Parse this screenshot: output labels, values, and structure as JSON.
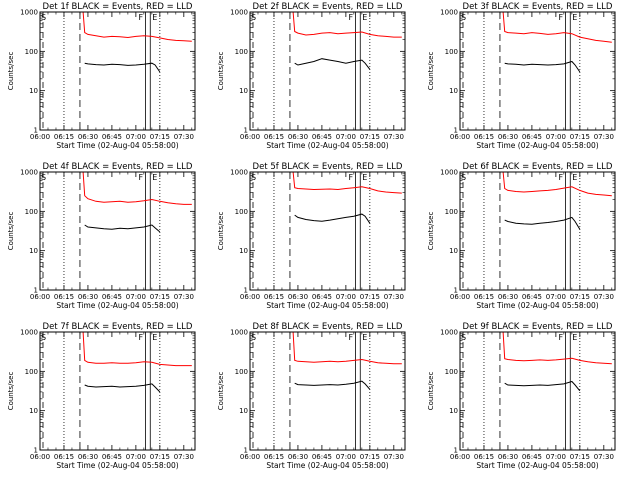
{
  "chart_data": {
    "type": "line",
    "panels": [
      {
        "title": "Det 1f BLACK = Events, RED = LLD",
        "xlabel": "Start Time (02-Aug-04 05:58:00)",
        "ylabel": "Counts/sec",
        "x_ticks": [
          "06:00",
          "06:15",
          "06:30",
          "06:45",
          "07:00",
          "07:15",
          "07:30"
        ],
        "y_ticks": [
          "1",
          "10",
          "100",
          "1000"
        ],
        "xlim": [
          "06:00",
          "07:37"
        ],
        "ylim": [
          1,
          1000
        ],
        "yscale": "log",
        "flags": [
          "S",
          "F",
          "E"
        ],
        "series": [
          {
            "color": "#ff0000",
            "x": [
              "06:27",
              "06:28",
              "06:30",
              "06:35",
              "06:40",
              "06:45",
              "06:50",
              "06:55",
              "07:00",
              "07:05",
              "07:10",
              "07:15",
              "07:20",
              "07:25",
              "07:30",
              "07:35"
            ],
            "values": [
              1000,
              300,
              270,
              250,
              230,
              240,
              235,
              225,
              240,
              250,
              240,
              220,
              200,
              190,
              185,
              180
            ]
          },
          {
            "color": "#000000",
            "x": [
              "06:28",
              "06:30",
              "06:35",
              "06:40",
              "06:45",
              "06:50",
              "06:55",
              "07:00",
              "07:05",
              "07:10",
              "07:12",
              "07:15"
            ],
            "values": [
              50,
              48,
              46,
              45,
              47,
              46,
              44,
              45,
              47,
              50,
              45,
              30
            ]
          }
        ]
      },
      {
        "title": "Det 2f BLACK = Events, RED = LLD",
        "xlabel": "Start Time (02-Aug-04 05:58:00)",
        "ylabel": "Counts/sec",
        "x_ticks": [
          "06:00",
          "06:15",
          "06:30",
          "06:45",
          "07:00",
          "07:15",
          "07:30"
        ],
        "y_ticks": [
          "1",
          "10",
          "100",
          "1000"
        ],
        "xlim": [
          "06:00",
          "07:37"
        ],
        "ylim": [
          1,
          1000
        ],
        "yscale": "log",
        "flags": [
          "S",
          "F",
          "E"
        ],
        "series": [
          {
            "color": "#ff0000",
            "x": [
              "06:27",
              "06:28",
              "06:30",
              "06:35",
              "06:40",
              "06:45",
              "06:50",
              "06:55",
              "07:00",
              "07:05",
              "07:10",
              "07:15",
              "07:20",
              "07:25",
              "07:30",
              "07:35"
            ],
            "values": [
              1000,
              320,
              290,
              260,
              270,
              290,
              300,
              280,
              290,
              300,
              310,
              270,
              250,
              240,
              230,
              230
            ]
          },
          {
            "color": "#000000",
            "x": [
              "06:28",
              "06:30",
              "06:35",
              "06:40",
              "06:45",
              "06:50",
              "06:55",
              "07:00",
              "07:05",
              "07:10",
              "07:12",
              "07:15"
            ],
            "values": [
              50,
              45,
              50,
              55,
              65,
              60,
              55,
              50,
              55,
              60,
              50,
              35
            ]
          }
        ]
      },
      {
        "title": "Det 3f BLACK = Events, RED = LLD",
        "xlabel": "Start Time (02-Aug-04 05:58:00)",
        "ylabel": "Counts/sec",
        "x_ticks": [
          "06:00",
          "06:15",
          "06:30",
          "06:45",
          "07:00",
          "07:15",
          "07:30"
        ],
        "y_ticks": [
          "1",
          "10",
          "100",
          "1000"
        ],
        "xlim": [
          "06:00",
          "07:37"
        ],
        "ylim": [
          1,
          1000
        ],
        "yscale": "log",
        "flags": [
          "S",
          "F",
          "E"
        ],
        "series": [
          {
            "color": "#ff0000",
            "x": [
              "06:27",
              "06:28",
              "06:30",
              "06:35",
              "06:40",
              "06:45",
              "06:50",
              "06:55",
              "07:00",
              "07:05",
              "07:10",
              "07:15",
              "07:20",
              "07:25",
              "07:30",
              "07:35"
            ],
            "values": [
              1000,
              320,
              300,
              290,
              280,
              300,
              285,
              270,
              280,
              300,
              280,
              230,
              210,
              190,
              180,
              170
            ]
          },
          {
            "color": "#000000",
            "x": [
              "06:28",
              "06:30",
              "06:35",
              "06:40",
              "06:45",
              "06:50",
              "06:55",
              "07:00",
              "07:05",
              "07:10",
              "07:12",
              "07:15"
            ],
            "values": [
              50,
              48,
              47,
              45,
              47,
              46,
              45,
              46,
              48,
              55,
              45,
              30
            ]
          }
        ]
      },
      {
        "title": "Det 4f BLACK = Events, RED = LLD",
        "xlabel": "Start Time (02-Aug-04 05:58:00)",
        "ylabel": "Counts/sec",
        "x_ticks": [
          "06:00",
          "06:15",
          "06:30",
          "06:45",
          "07:00",
          "07:15",
          "07:30"
        ],
        "y_ticks": [
          "1",
          "10",
          "100",
          "1000"
        ],
        "xlim": [
          "06:00",
          "07:37"
        ],
        "ylim": [
          1,
          1000
        ],
        "yscale": "log",
        "flags": [
          "S",
          "F",
          "E"
        ],
        "series": [
          {
            "color": "#ff0000",
            "x": [
              "06:27",
              "06:28",
              "06:30",
              "06:35",
              "06:40",
              "06:45",
              "06:50",
              "06:55",
              "07:00",
              "07:05",
              "07:10",
              "07:15",
              "07:20",
              "07:25",
              "07:30",
              "07:35"
            ],
            "values": [
              1000,
              250,
              210,
              180,
              170,
              175,
              180,
              170,
              175,
              185,
              200,
              180,
              165,
              155,
              150,
              150
            ]
          },
          {
            "color": "#000000",
            "x": [
              "06:28",
              "06:30",
              "06:35",
              "06:40",
              "06:45",
              "06:50",
              "06:55",
              "07:00",
              "07:05",
              "07:10",
              "07:12",
              "07:15"
            ],
            "values": [
              45,
              40,
              38,
              36,
              35,
              37,
              36,
              38,
              40,
              45,
              38,
              30
            ]
          }
        ]
      },
      {
        "title": "Det 5f BLACK = Events, RED = LLD",
        "xlabel": "Start Time (02-Aug-04 05:58:00)",
        "ylabel": "Counts/sec",
        "x_ticks": [
          "06:00",
          "06:15",
          "06:30",
          "06:45",
          "07:00",
          "07:15",
          "07:30"
        ],
        "y_ticks": [
          "1",
          "10",
          "100",
          "1000"
        ],
        "xlim": [
          "06:00",
          "07:37"
        ],
        "ylim": [
          1,
          1000
        ],
        "yscale": "log",
        "flags": [
          "S",
          "F",
          "E"
        ],
        "series": [
          {
            "color": "#ff0000",
            "x": [
              "06:27",
              "06:28",
              "06:30",
              "06:35",
              "06:40",
              "06:45",
              "06:50",
              "06:55",
              "07:00",
              "07:05",
              "07:10",
              "07:15",
              "07:20",
              "07:25",
              "07:30",
              "07:35"
            ],
            "values": [
              1000,
              400,
              380,
              370,
              360,
              365,
              370,
              360,
              380,
              400,
              420,
              380,
              330,
              310,
              300,
              290
            ]
          },
          {
            "color": "#000000",
            "x": [
              "06:28",
              "06:30",
              "06:35",
              "06:40",
              "06:45",
              "06:50",
              "06:55",
              "07:00",
              "07:05",
              "07:10",
              "07:12",
              "07:15"
            ],
            "values": [
              80,
              70,
              62,
              58,
              56,
              60,
              65,
              70,
              75,
              85,
              75,
              50
            ]
          }
        ]
      },
      {
        "title": "Det 6f BLACK = Events, RED = LLD",
        "xlabel": "Start Time (02-Aug-04 05:58:00)",
        "ylabel": "Counts/sec",
        "x_ticks": [
          "06:00",
          "06:15",
          "06:30",
          "06:45",
          "07:00",
          "07:15",
          "07:30"
        ],
        "y_ticks": [
          "1",
          "10",
          "100",
          "1000"
        ],
        "xlim": [
          "06:00",
          "07:37"
        ],
        "ylim": [
          1,
          1000
        ],
        "yscale": "log",
        "flags": [
          "S",
          "F",
          "E"
        ],
        "series": [
          {
            "color": "#ff0000",
            "x": [
              "06:27",
              "06:28",
              "06:30",
              "06:35",
              "06:40",
              "06:45",
              "06:50",
              "06:55",
              "07:00",
              "07:05",
              "07:10",
              "07:15",
              "07:20",
              "07:25",
              "07:30",
              "07:35"
            ],
            "values": [
              1000,
              380,
              340,
              320,
              310,
              320,
              330,
              340,
              360,
              390,
              420,
              340,
              290,
              270,
              260,
              250
            ]
          },
          {
            "color": "#000000",
            "x": [
              "06:28",
              "06:30",
              "06:35",
              "06:40",
              "06:45",
              "06:50",
              "06:55",
              "07:00",
              "07:05",
              "07:10",
              "07:12",
              "07:15"
            ],
            "values": [
              60,
              55,
              50,
              48,
              47,
              50,
              52,
              55,
              60,
              70,
              55,
              35
            ]
          }
        ]
      },
      {
        "title": "Det 7f BLACK = Events, RED = LLD",
        "xlabel": "Start Time (02-Aug-04 05:58:00)",
        "ylabel": "Counts/sec",
        "x_ticks": [
          "06:00",
          "06:15",
          "06:30",
          "06:45",
          "07:00",
          "07:15",
          "07:30"
        ],
        "y_ticks": [
          "1",
          "10",
          "100",
          "1000"
        ],
        "xlim": [
          "06:00",
          "07:37"
        ],
        "ylim": [
          1,
          1000
        ],
        "yscale": "log",
        "flags": [
          "S",
          "F",
          "E"
        ],
        "series": [
          {
            "color": "#ff0000",
            "x": [
              "06:27",
              "06:28",
              "06:30",
              "06:35",
              "06:40",
              "06:45",
              "06:50",
              "06:55",
              "07:00",
              "07:05",
              "07:10",
              "07:15",
              "07:20",
              "07:25",
              "07:30",
              "07:35"
            ],
            "values": [
              1000,
              190,
              170,
              160,
              160,
              165,
              160,
              160,
              165,
              175,
              170,
              150,
              145,
              140,
              140,
              140
            ]
          },
          {
            "color": "#000000",
            "x": [
              "06:28",
              "06:30",
              "06:35",
              "06:40",
              "06:45",
              "06:50",
              "06:55",
              "07:00",
              "07:05",
              "07:10",
              "07:12",
              "07:15"
            ],
            "values": [
              45,
              42,
              40,
              41,
              42,
              40,
              41,
              42,
              44,
              48,
              40,
              30
            ]
          }
        ]
      },
      {
        "title": "Det 8f BLACK = Events, RED = LLD",
        "xlabel": "Start Time (02-Aug-04 05:58:00)",
        "ylabel": "Counts/sec",
        "x_ticks": [
          "06:00",
          "06:15",
          "06:30",
          "06:45",
          "07:00",
          "07:15",
          "07:30"
        ],
        "y_ticks": [
          "1",
          "10",
          "100",
          "1000"
        ],
        "xlim": [
          "06:00",
          "07:37"
        ],
        "ylim": [
          1,
          1000
        ],
        "yscale": "log",
        "flags": [
          "S",
          "F",
          "E"
        ],
        "series": [
          {
            "color": "#ff0000",
            "x": [
              "06:27",
              "06:28",
              "06:30",
              "06:35",
              "06:40",
              "06:45",
              "06:50",
              "06:55",
              "07:00",
              "07:05",
              "07:10",
              "07:15",
              "07:20",
              "07:25",
              "07:30",
              "07:35"
            ],
            "values": [
              1000,
              190,
              180,
              175,
              170,
              175,
              180,
              175,
              180,
              190,
              200,
              180,
              165,
              160,
              155,
              155
            ]
          },
          {
            "color": "#000000",
            "x": [
              "06:28",
              "06:30",
              "06:35",
              "06:40",
              "06:45",
              "06:50",
              "06:55",
              "07:00",
              "07:05",
              "07:10",
              "07:12",
              "07:15"
            ],
            "values": [
              50,
              46,
              45,
              44,
              45,
              46,
              45,
              47,
              50,
              56,
              48,
              35
            ]
          }
        ]
      },
      {
        "title": "Det 9f BLACK = Events, RED = LLD",
        "xlabel": "Start Time (02-Aug-04 05:58:00)",
        "ylabel": "Counts/sec",
        "x_ticks": [
          "06:00",
          "06:15",
          "06:30",
          "06:45",
          "07:00",
          "07:15",
          "07:30"
        ],
        "y_ticks": [
          "1",
          "10",
          "100",
          "1000"
        ],
        "xlim": [
          "06:00",
          "07:37"
        ],
        "ylim": [
          1,
          1000
        ],
        "yscale": "log",
        "flags": [
          "S",
          "F",
          "E"
        ],
        "series": [
          {
            "color": "#ff0000",
            "x": [
              "06:27",
              "06:28",
              "06:30",
              "06:35",
              "06:40",
              "06:45",
              "06:50",
              "06:55",
              "07:00",
              "07:05",
              "07:10",
              "07:15",
              "07:20",
              "07:25",
              "07:30",
              "07:35"
            ],
            "values": [
              1000,
              210,
              200,
              190,
              185,
              190,
              195,
              190,
              195,
              205,
              215,
              190,
              175,
              165,
              160,
              155
            ]
          },
          {
            "color": "#000000",
            "x": [
              "06:28",
              "06:30",
              "06:35",
              "06:40",
              "06:45",
              "06:50",
              "06:55",
              "07:00",
              "07:05",
              "07:10",
              "07:12",
              "07:15"
            ],
            "values": [
              50,
              45,
              44,
              43,
              44,
              45,
              44,
              46,
              48,
              55,
              45,
              32
            ]
          }
        ]
      }
    ]
  }
}
